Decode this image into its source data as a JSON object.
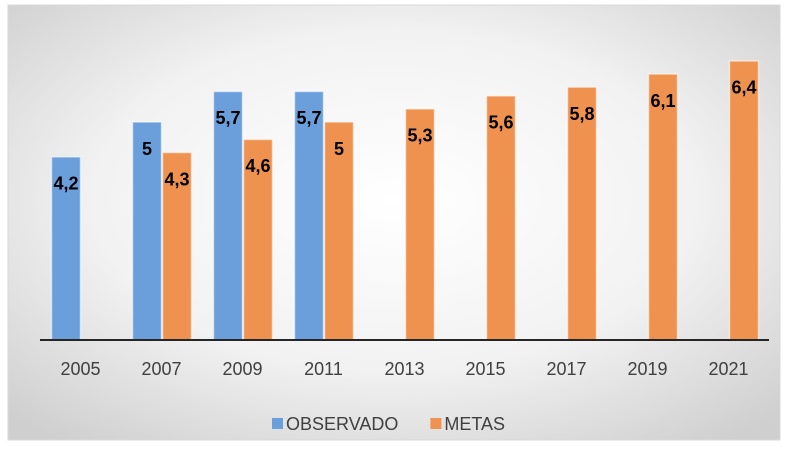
{
  "chart_data": {
    "type": "bar",
    "categories": [
      "2005",
      "2007",
      "2009",
      "2011",
      "2013",
      "2015",
      "2017",
      "2019",
      "2021"
    ],
    "series": [
      {
        "name": "OBSERVADO",
        "color": "#6b9fdc",
        "values": [
          4.2,
          5,
          5.7,
          5.7,
          null,
          null,
          null,
          null,
          null
        ],
        "value_labels": [
          "4,2",
          "5",
          "5,7",
          "5,7",
          null,
          null,
          null,
          null,
          null
        ]
      },
      {
        "name": "METAS",
        "color": "#f0924f",
        "values": [
          null,
          4.3,
          4.6,
          5,
          5.3,
          5.6,
          5.8,
          6.1,
          6.4
        ],
        "value_labels": [
          null,
          "4,3",
          "4,6",
          "5",
          "5,3",
          "5,6",
          "5,8",
          "6,1",
          "6,4"
        ]
      }
    ],
    "ylim": [
      0,
      7
    ],
    "legend": "bottom"
  }
}
